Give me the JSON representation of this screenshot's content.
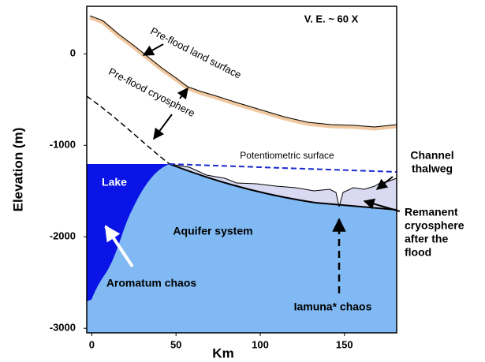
{
  "header": {
    "scale_note": "V. E. ~ 60 X"
  },
  "axes": {
    "x_label": "Km",
    "y_label": "Elevation (m)",
    "xlim": [
      -3,
      181
    ],
    "ylim": [
      -3050,
      520
    ],
    "xticks": [
      0,
      50,
      100,
      150
    ],
    "yticks": [
      0,
      -1000,
      -2000,
      -3000
    ]
  },
  "labels": {
    "land_surface": "Pre-flood land surface",
    "cryosphere": "Pre-flood cryosphere",
    "potentiometric": "Potentiometric surface",
    "lake": "Lake",
    "aquifer": "Aquifer system",
    "aromatum": "Aromatum chaos",
    "iamuna": "Iamuna* chaos",
    "channel": [
      "Channel",
      "thalweg"
    ],
    "remanent": [
      "Remanent",
      "cryosphere",
      "after the",
      "flood"
    ]
  }
}
